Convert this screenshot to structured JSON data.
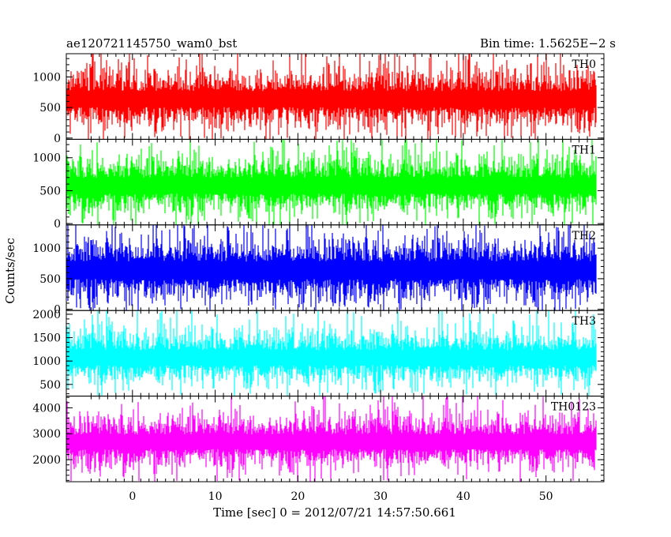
{
  "header": {
    "left": "ae120721145750_wam0_bst",
    "right": "Bin time: 1.5625E−2 s"
  },
  "chart_data": {
    "type": "line",
    "xlabel": "Time [sec] 0 = 2012/07/21 14:57:50.661",
    "ylabel": "Counts/sec",
    "xlim": [
      -8,
      57
    ],
    "x_data_range": [
      -8,
      56
    ],
    "x_ticks": [
      0,
      10,
      20,
      30,
      40,
      50
    ],
    "grid": false,
    "panels": [
      {
        "name": "TH0",
        "color": "#ff0000",
        "ylim": [
          -20,
          1380
        ],
        "y_ticks": [
          0,
          500,
          1000
        ],
        "level": 620,
        "spread": 330,
        "low_floor": 120,
        "peak": 1380
      },
      {
        "name": "TH1",
        "color": "#00ff00",
        "ylim": [
          -20,
          1280
        ],
        "y_ticks": [
          0,
          500,
          1000
        ],
        "level": 560,
        "spread": 300,
        "low_floor": 100,
        "peak": 1280
      },
      {
        "name": "TH2",
        "color": "#0000ff",
        "ylim": [
          -20,
          1380
        ],
        "y_ticks": [
          0,
          500,
          1000
        ],
        "level": 620,
        "spread": 360,
        "low_floor": 150,
        "peak": 1380
      },
      {
        "name": "TH3",
        "color": "#00ffff",
        "ylim": [
          250,
          2080
        ],
        "y_ticks": [
          500,
          1000,
          1500,
          2000
        ],
        "level": 1050,
        "spread": 400,
        "low_floor": 450,
        "peak": 2080
      },
      {
        "name": "TH0123",
        "color": "#ff00ff",
        "ylim": [
          1150,
          4450
        ],
        "y_ticks": [
          2000,
          3000,
          4000
        ],
        "level": 2650,
        "spread": 700,
        "low_floor": 1550,
        "peak": 4450
      }
    ]
  }
}
